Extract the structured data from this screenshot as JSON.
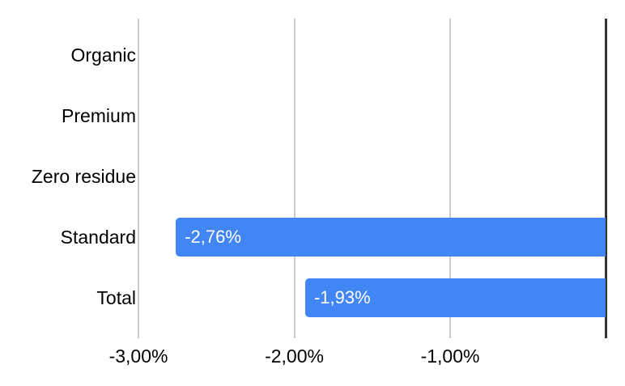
{
  "chart_data": {
    "type": "bar",
    "orientation": "horizontal",
    "title": "",
    "categories": [
      "Organic",
      "Premium",
      "Zero residue",
      "Standard",
      "Total"
    ],
    "values": [
      null,
      null,
      null,
      -2.76,
      -1.93
    ],
    "bar_labels": [
      null,
      null,
      null,
      "-2,76%",
      "-1,93%"
    ],
    "x_ticks": [
      {
        "value": -3,
        "label": "-3,00%"
      },
      {
        "value": -2,
        "label": "-2,00%"
      },
      {
        "value": -1,
        "label": "-1,00%"
      }
    ],
    "xlim": [
      -3,
      0
    ],
    "unit": "%",
    "decimal_separator": ",",
    "grid": true,
    "legend": "none",
    "colors": {
      "bar": "#4285f4",
      "bar_label": "#ffffff",
      "axis_line": "#333333",
      "gridline": "#cccccc",
      "text": "#000000",
      "background": "#ffffff"
    }
  }
}
